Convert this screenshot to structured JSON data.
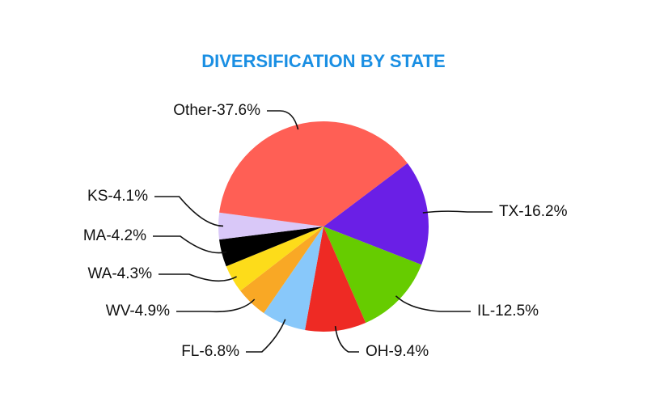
{
  "chart_data": {
    "type": "pie",
    "title": "DIVERSIFICATION BY STATE",
    "categories": [
      "TX-16.2%",
      "IL-12.5%",
      "OH-9.4%",
      "FL-6.8%",
      "WV-4.9%",
      "WA-4.3%",
      "MA-4.2%",
      "KS-4.1%",
      "Other-37.6%"
    ],
    "values": [
      16.2,
      12.5,
      9.4,
      6.8,
      4.9,
      4.3,
      4.2,
      4.1,
      37.6
    ],
    "colors": [
      "#6a1fe6",
      "#66cc00",
      "#ee2a24",
      "#88c8fa",
      "#f9a825",
      "#fddc1a",
      "#000000",
      "#d9c8f8",
      "#ff5f55"
    ]
  }
}
